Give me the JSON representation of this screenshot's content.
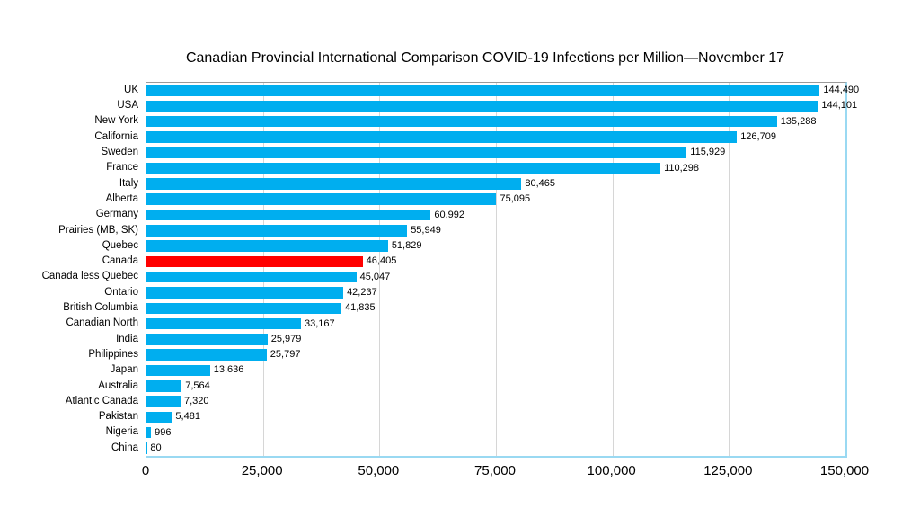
{
  "colors": {
    "bar": "#00AEEF",
    "highlight": "#FF0000",
    "gridline": "#D6D6D6",
    "axis_gray": "#9A9A9A",
    "frame_blue": "#9AD9F2",
    "text": "#000000",
    "background": "#FFFFFF"
  },
  "chart_data": {
    "type": "bar",
    "orientation": "horizontal",
    "title": "Canadian Provincial International Comparison COVID-19 Infections per Million—November 17",
    "xlabel": "",
    "ylabel": "",
    "xlim": [
      0,
      150000
    ],
    "grid": "vertical",
    "legend": "none",
    "highlight_category": "Canada",
    "categories": [
      "UK",
      "USA",
      "New York",
      "California",
      "Sweden",
      "France",
      "Italy",
      "Alberta",
      "Germany",
      "Prairies (MB, SK)",
      "Quebec",
      "Canada",
      "Canada less Quebec",
      "Ontario",
      "British Columbia",
      "Canadian North",
      "India",
      "Philippines",
      "Japan",
      "Australia",
      "Atlantic Canada",
      "Pakistan",
      "Nigeria",
      "China"
    ],
    "values": [
      144490,
      144101,
      135288,
      126709,
      115929,
      110298,
      80465,
      75095,
      60992,
      55949,
      51829,
      46405,
      45047,
      42237,
      41835,
      33167,
      25979,
      25797,
      13636,
      7564,
      7320,
      5481,
      996,
      80
    ],
    "value_labels": [
      "144,490",
      "144,101",
      "135,288",
      "126,709",
      "115,929",
      "110,298",
      "80,465",
      "75,095",
      "60,992",
      "55,949",
      "51,829",
      "46,405",
      "45,047",
      "42,237",
      "41,835",
      "33,167",
      "25,979",
      "25,797",
      "13,636",
      "7,564",
      "7,320",
      "5,481",
      "996",
      "80"
    ],
    "x_ticks": [
      0,
      25000,
      50000,
      75000,
      100000,
      125000,
      150000
    ],
    "x_tick_labels": [
      "0",
      "25,000",
      "50,000",
      "75,000",
      "100,000",
      "125,000",
      "150,000"
    ]
  }
}
